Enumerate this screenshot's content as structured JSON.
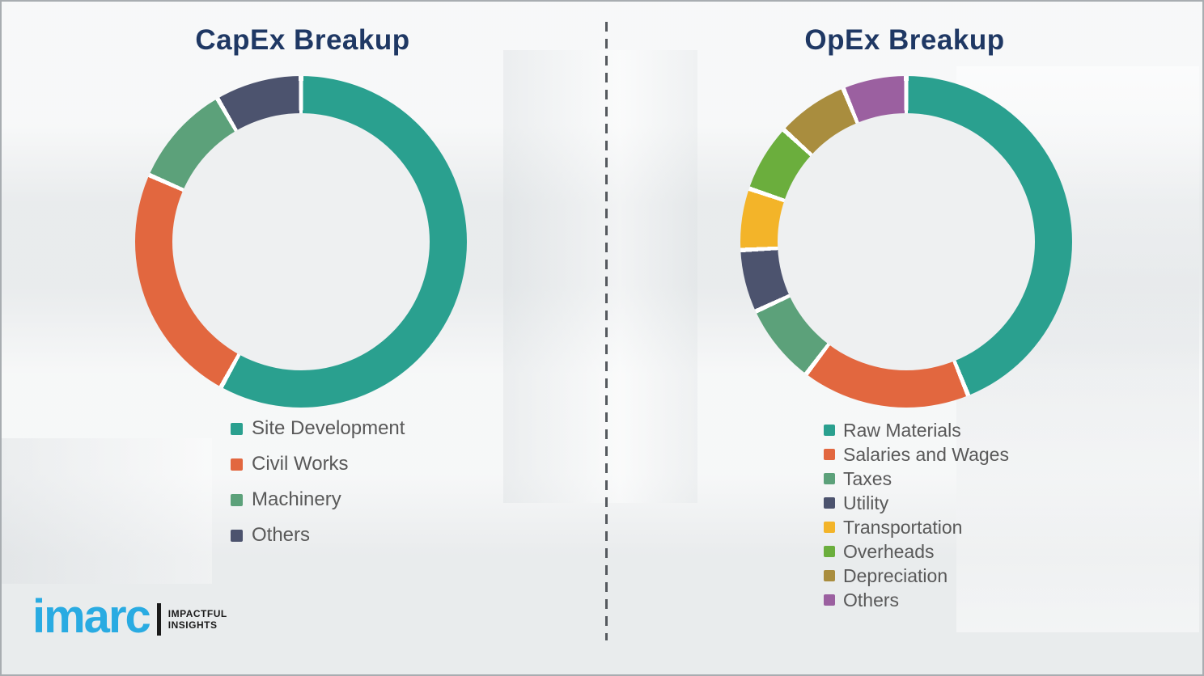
{
  "page": {
    "background_color": "#eef0f1",
    "title_color": "#1F3864",
    "divider_color": "#55595e",
    "legend_text_color": "#595959"
  },
  "chart_data": [
    {
      "type": "pie",
      "variant": "donut",
      "title": "CapEx Breakup",
      "legend_position": "below-left",
      "segments": [
        {
          "label": "Site Development",
          "value": 58.0,
          "color": "#2AA08F"
        },
        {
          "label": "Civil Works",
          "value": 23.6,
          "color": "#E2673F"
        },
        {
          "label": "Machinery",
          "value": 10.0,
          "color": "#5CA17A"
        },
        {
          "label": "Others",
          "value": 8.4,
          "color": "#4C536E"
        }
      ]
    },
    {
      "type": "pie",
      "variant": "donut",
      "title": "OpEx Breakup",
      "legend_position": "below-left",
      "segments": [
        {
          "label": "Raw Materials",
          "value": 43.9,
          "color": "#2AA08F"
        },
        {
          "label": "Salaries and Wages",
          "value": 16.4,
          "color": "#E2673F"
        },
        {
          "label": "Taxes",
          "value": 7.8,
          "color": "#5CA17A"
        },
        {
          "label": "Utility",
          "value": 6.1,
          "color": "#4C536E"
        },
        {
          "label": "Transportation",
          "value": 6.0,
          "color": "#F3B429"
        },
        {
          "label": "Overheads",
          "value": 6.6,
          "color": "#6BAE3D"
        },
        {
          "label": "Depreciation",
          "value": 7.0,
          "color": "#A98D3E"
        },
        {
          "label": "Others",
          "value": 6.2,
          "color": "#9B60A0"
        }
      ]
    }
  ],
  "logo": {
    "brand": "imarc",
    "brand_color": "#29ABE2",
    "tagline_line1": "IMPACTFUL",
    "tagline_line2": "INSIGHTS"
  }
}
